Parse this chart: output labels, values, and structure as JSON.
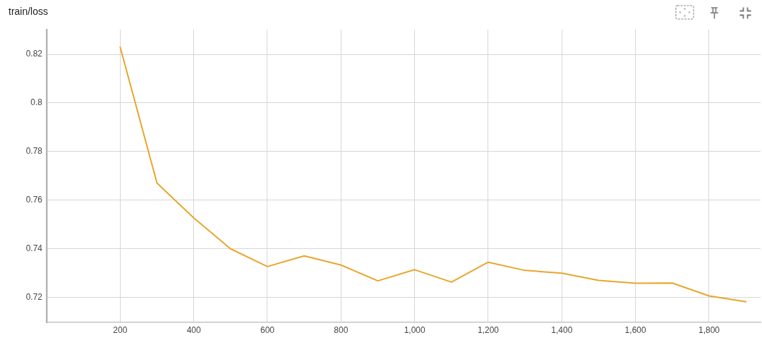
{
  "chart_data": {
    "type": "line",
    "title": "train/loss",
    "x": [
      200,
      300,
      400,
      500,
      600,
      700,
      800,
      900,
      1000,
      1100,
      1200,
      1300,
      1400,
      1500,
      1600,
      1700,
      1800,
      1900
    ],
    "series": [
      {
        "color": "#e9a52d",
        "values": [
          0.823,
          0.767,
          0.7526,
          0.7399,
          0.7326,
          0.737,
          0.7332,
          0.7267,
          0.7313,
          0.7262,
          0.7344,
          0.731,
          0.7299,
          0.7269,
          0.7257,
          0.7258,
          0.7205,
          0.7181
        ]
      }
    ],
    "xlim": [
      0,
      1940
    ],
    "xticks": [
      200,
      400,
      600,
      800,
      {
        "value": 1000,
        "label": "1,000"
      },
      {
        "value": 1200,
        "label": "1,200"
      },
      {
        "value": 1400,
        "label": "1,400"
      },
      {
        "value": 1600,
        "label": "1,600"
      },
      {
        "value": 1800,
        "label": "1,800"
      }
    ],
    "ylim": [
      0.7096,
      0.8302
    ],
    "yticks": [
      0.72,
      0.74,
      0.76,
      0.78,
      0.8,
      0.82
    ],
    "grid": true,
    "marker": "none",
    "line_style": "solid"
  }
}
